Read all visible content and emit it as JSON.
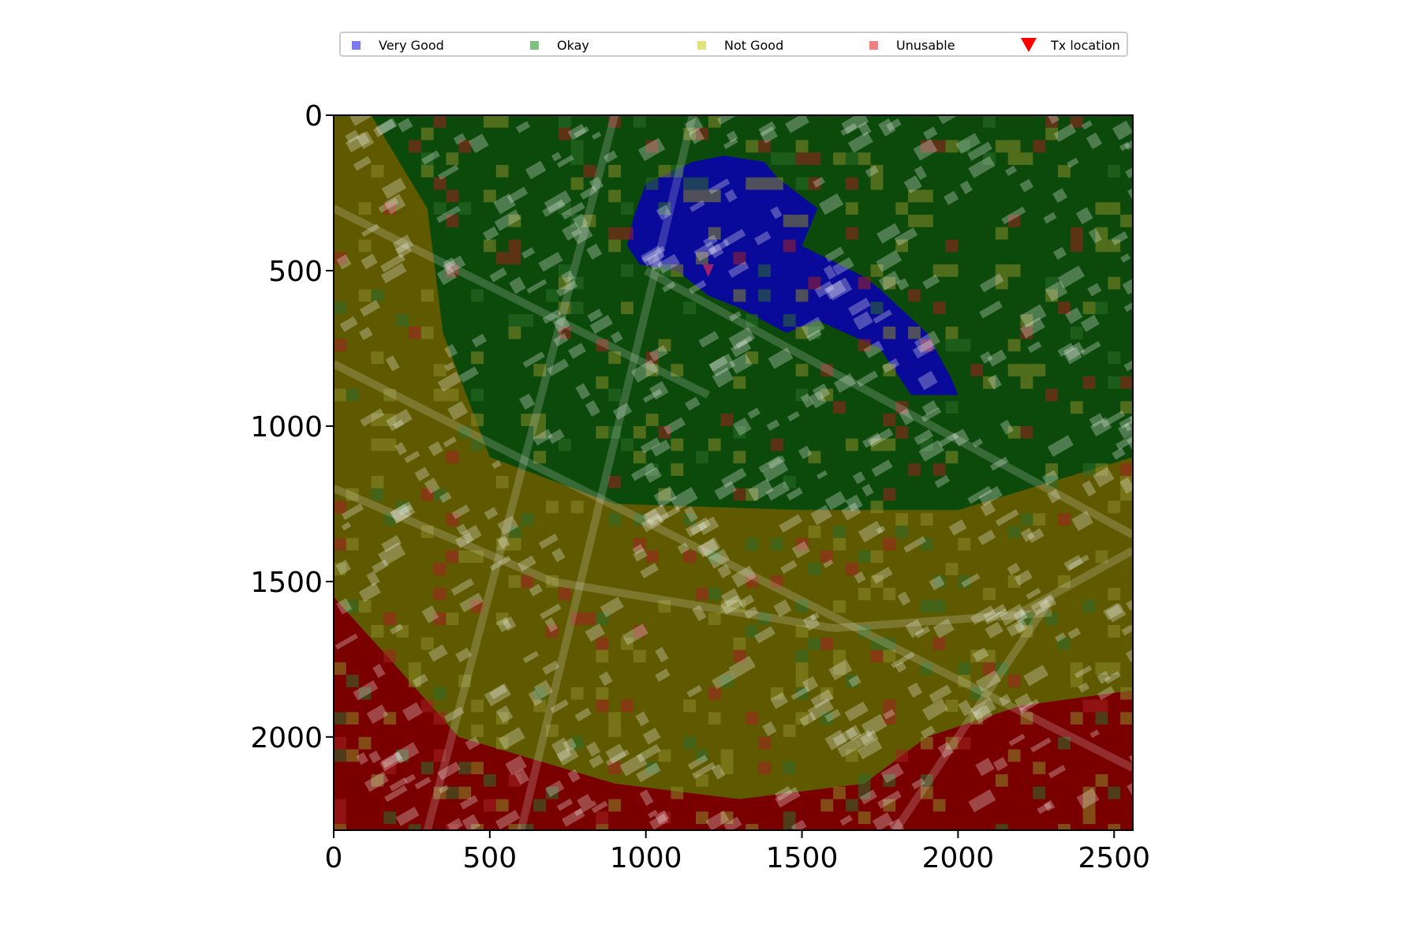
{
  "chart_data": {
    "type": "heatmap",
    "title": "",
    "xlabel": "",
    "ylabel": "",
    "xlim": [
      0,
      2560
    ],
    "ylim": [
      2300,
      0
    ],
    "x_ticks": [
      0,
      500,
      1000,
      1500,
      2000,
      2500
    ],
    "y_ticks": [
      0,
      500,
      1000,
      1500,
      2000
    ],
    "grid": false,
    "legend_placement": "top-center (above plot)",
    "legend": [
      {
        "label": "Very Good",
        "color": "#7b7bf0",
        "marker": "square"
      },
      {
        "label": "Okay",
        "color": "#7fbf7f",
        "marker": "square"
      },
      {
        "label": "Not Good",
        "color": "#e2e27c",
        "marker": "square"
      },
      {
        "label": "Unusable",
        "color": "#f08080",
        "marker": "square"
      },
      {
        "label": "Tx location",
        "color": "#ff0000",
        "marker": "triangle-down"
      }
    ],
    "tx_location": {
      "x": 1200,
      "y": 500
    },
    "region_colors": {
      "very_good": "#0a0a9a",
      "okay": "#0b4a0b",
      "not_good": "#5f5a00",
      "unusable": "#7a0000"
    }
  }
}
